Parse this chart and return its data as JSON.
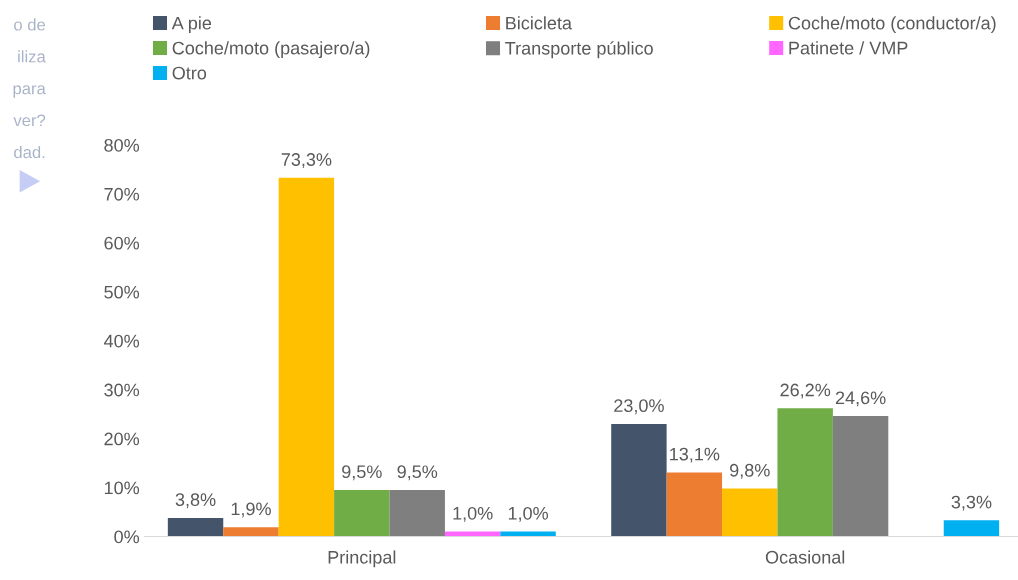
{
  "chart_data": {
    "type": "bar",
    "categories": [
      "Principal",
      "Ocasional"
    ],
    "series": [
      {
        "name": "A pie",
        "color": "#44546a",
        "values": [
          3.8,
          23.0
        ],
        "value_labels": [
          "3,8%",
          "23,0%"
        ]
      },
      {
        "name": "Bicicleta",
        "color": "#ed7d31",
        "values": [
          1.9,
          13.1
        ],
        "value_labels": [
          "1,9%",
          "13,1%"
        ]
      },
      {
        "name": "Coche/moto (conductor/a)",
        "color": "#ffc000",
        "values": [
          73.3,
          9.8
        ],
        "value_labels": [
          "73,3%",
          "9,8%"
        ]
      },
      {
        "name": "Coche/moto (pasajero/a)",
        "color": "#70ad47",
        "values": [
          9.5,
          26.2
        ],
        "value_labels": [
          "9,5%",
          "26,2%"
        ]
      },
      {
        "name": "Transporte público",
        "color": "#7f7f7f",
        "values": [
          9.5,
          24.6
        ],
        "value_labels": [
          "9,5%",
          "24,6%"
        ]
      },
      {
        "name": "Patinete / VMP",
        "color": "#ff66ff",
        "values": [
          1.0,
          null
        ],
        "value_labels": [
          "1,0%",
          null
        ]
      },
      {
        "name": "Otro",
        "color": "#00b0f0",
        "values": [
          1.0,
          3.3
        ],
        "value_labels": [
          "1,0%",
          "3,3%"
        ]
      }
    ],
    "ylim": [
      0,
      80
    ],
    "yticks": [
      {
        "value": 0,
        "label": "0%"
      },
      {
        "value": 10,
        "label": "10%"
      },
      {
        "value": 20,
        "label": "20%"
      },
      {
        "value": 30,
        "label": "30%"
      },
      {
        "value": 40,
        "label": "40%"
      },
      {
        "value": 50,
        "label": "50%"
      },
      {
        "value": 60,
        "label": "60%"
      },
      {
        "value": 70,
        "label": "70%"
      },
      {
        "value": 80,
        "label": "80%"
      }
    ],
    "grid": false,
    "legend": "top",
    "annotations": [
      "o de",
      "iliza",
      "para",
      "ver?",
      "dad."
    ]
  }
}
